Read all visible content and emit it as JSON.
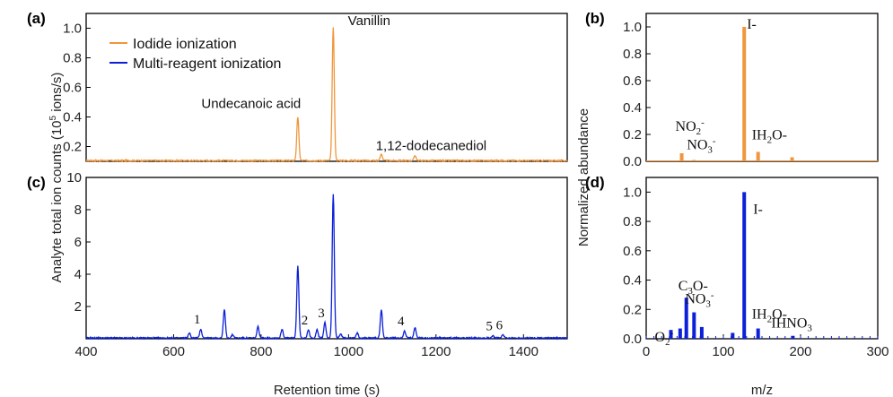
{
  "colors": {
    "iodide": "#f0963c",
    "multi": "#0b20d8"
  },
  "panel_labels": {
    "a": "(a)",
    "b": "(b)",
    "c": "(c)",
    "d": "(d)"
  },
  "shared": {
    "ylabel_left": "Analyte total ion counts (10⁵ ions/s)",
    "ylabel_left_parts": {
      "pre": "Analyte total ion counts (10",
      "sup": "5",
      "post": " ions/s)"
    },
    "ylabel_right": "Normalized abundance",
    "xlabel_left": "Retention time (s)",
    "xlabel_right": "m/z"
  },
  "legend": {
    "iodide": "Iodide ionization",
    "multi": "Multi-reagent ionization"
  },
  "chart_data": [
    {
      "panel": "a",
      "type": "line",
      "series_name": "Iodide ionization",
      "xlim": [
        400,
        1500
      ],
      "ylim": [
        0.1,
        1.1
      ],
      "yticks": [
        0.2,
        0.4,
        0.6,
        0.8,
        1.0
      ],
      "yticklabels": [
        "0.2",
        "0.4",
        "0.6",
        "0.8",
        "1.0"
      ],
      "baseline": 0.105,
      "peaks": [
        {
          "x": 884,
          "y": 0.4
        },
        {
          "x": 965,
          "y": 1.01
        },
        {
          "x": 1075,
          "y": 0.15
        },
        {
          "x": 1152,
          "y": 0.14
        }
      ],
      "annotations": [
        {
          "text": "Undecanoic acid",
          "x": 884,
          "y": 0.4
        },
        {
          "text": "Vanillin",
          "x": 965,
          "y": 1.01
        },
        {
          "text": "1,12-dodecanediol",
          "x": 1152,
          "y": 0.14
        }
      ]
    },
    {
      "panel": "c",
      "type": "line",
      "series_name": "Multi-reagent ionization",
      "xlim": [
        400,
        1500
      ],
      "ylim": [
        0,
        10
      ],
      "xticks": [
        400,
        600,
        800,
        1000,
        1200,
        1400
      ],
      "xticklabels": [
        "400",
        "600",
        "800",
        "1000",
        "1200",
        "1400"
      ],
      "yticks": [
        2,
        4,
        6,
        8,
        10
      ],
      "yticklabels": [
        "2",
        "4",
        "6",
        "8",
        "10"
      ],
      "baseline": 0.05,
      "peaks": [
        {
          "x": 636,
          "y": 0.35
        },
        {
          "x": 662,
          "y": 0.6
        },
        {
          "x": 716,
          "y": 1.8
        },
        {
          "x": 735,
          "y": 0.25
        },
        {
          "x": 793,
          "y": 0.75
        },
        {
          "x": 848,
          "y": 0.6
        },
        {
          "x": 884,
          "y": 4.5
        },
        {
          "x": 908,
          "y": 0.55
        },
        {
          "x": 928,
          "y": 0.55
        },
        {
          "x": 946,
          "y": 1.0
        },
        {
          "x": 965,
          "y": 9.0
        },
        {
          "x": 982,
          "y": 0.3
        },
        {
          "x": 1020,
          "y": 0.35
        },
        {
          "x": 1075,
          "y": 1.8
        },
        {
          "x": 1128,
          "y": 0.5
        },
        {
          "x": 1152,
          "y": 0.7
        },
        {
          "x": 1330,
          "y": 0.2
        },
        {
          "x": 1353,
          "y": 0.25
        }
      ],
      "peak_numbers": [
        {
          "text": "1",
          "x": 662,
          "y": 0.6
        },
        {
          "text": "2",
          "x": 908,
          "y": 0.55
        },
        {
          "text": "3",
          "x": 946,
          "y": 1.0
        },
        {
          "text": "4",
          "x": 1128,
          "y": 0.5
        },
        {
          "text": "5",
          "x": 1330,
          "y": 0.2
        },
        {
          "text": "6",
          "x": 1353,
          "y": 0.25
        }
      ]
    },
    {
      "panel": "b",
      "type": "bar",
      "series_name": "Iodide ionization",
      "xlim": [
        0,
        300
      ],
      "ylim": [
        0,
        1.1
      ],
      "yticks": [
        0.0,
        0.2,
        0.4,
        0.6,
        0.8,
        1.0
      ],
      "yticklabels": [
        "0.0",
        "0.2",
        "0.4",
        "0.6",
        "0.8",
        "1.0"
      ],
      "bars": [
        {
          "x": 46,
          "y": 0.06
        },
        {
          "x": 62,
          "y": 0.01
        },
        {
          "x": 127,
          "y": 1.0
        },
        {
          "x": 145,
          "y": 0.07
        },
        {
          "x": 189,
          "y": 0.03
        },
        {
          "x": 254,
          "y": 0.005
        }
      ],
      "ion_labels": [
        {
          "base": "I-",
          "parts": [],
          "x": 127,
          "y": 1.0
        },
        {
          "base": "NO",
          "parts": [
            [
              "sub",
              "2"
            ],
            [
              "sup",
              "-"
            ]
          ],
          "x": 46,
          "y": 0.06
        },
        {
          "base": "NO",
          "parts": [
            [
              "sub",
              "3"
            ],
            [
              "sup",
              "-"
            ]
          ],
          "x": 62,
          "y": 0.01
        },
        {
          "base": "IH",
          "parts": [
            [
              "sub",
              "2"
            ],
            [
              "text",
              "O-"
            ]
          ],
          "x": 145,
          "y": 0.07
        }
      ]
    },
    {
      "panel": "d",
      "type": "bar",
      "series_name": "Multi-reagent ionization",
      "xlim": [
        0,
        300
      ],
      "ylim": [
        0,
        1.1
      ],
      "xticks": [
        0,
        100,
        200,
        300
      ],
      "xticklabels": [
        "0",
        "100",
        "200",
        "300"
      ],
      "yticks": [
        0.0,
        0.2,
        0.4,
        0.6,
        0.8,
        1.0
      ],
      "yticklabels": [
        "0.0",
        "0.2",
        "0.4",
        "0.6",
        "0.8",
        "1.0"
      ],
      "bars": [
        {
          "x": 32,
          "y": 0.06
        },
        {
          "x": 44,
          "y": 0.07
        },
        {
          "x": 52,
          "y": 0.28
        },
        {
          "x": 62,
          "y": 0.18
        },
        {
          "x": 72,
          "y": 0.08
        },
        {
          "x": 112,
          "y": 0.04
        },
        {
          "x": 127,
          "y": 1.0
        },
        {
          "x": 145,
          "y": 0.07
        },
        {
          "x": 190,
          "y": 0.02
        }
      ],
      "ion_labels": [
        {
          "base": "I-",
          "parts": [],
          "x": 127,
          "y": 1.0
        },
        {
          "base": "O",
          "parts": [
            [
              "sub",
              "2"
            ],
            [
              "sup",
              "-"
            ]
          ],
          "x": 32,
          "y": 0.06
        },
        {
          "base": "C",
          "parts": [
            [
              "sub",
              "3"
            ],
            [
              "text",
              "O-"
            ]
          ],
          "x": 52,
          "y": 0.28
        },
        {
          "base": "NO",
          "parts": [
            [
              "sub",
              "3"
            ],
            [
              "sup",
              "-"
            ]
          ],
          "x": 62,
          "y": 0.18
        },
        {
          "base": "IH",
          "parts": [
            [
              "sub",
              "2"
            ],
            [
              "text",
              "O-"
            ]
          ],
          "x": 145,
          "y": 0.07
        },
        {
          "base": "IHNO",
          "parts": [
            [
              "sub",
              "3"
            ]
          ],
          "x": 190,
          "y": 0.02
        }
      ]
    }
  ]
}
